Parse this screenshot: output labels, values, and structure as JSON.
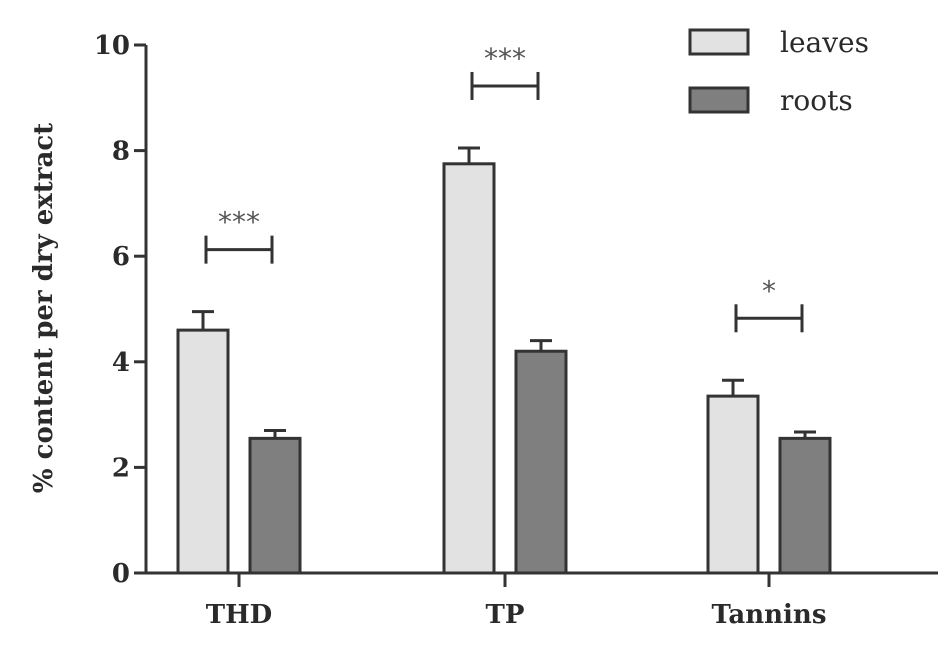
{
  "chart_data": {
    "type": "bar",
    "title": "",
    "xlabel": "",
    "ylabel": "% content per dry extract",
    "ylim": [
      0,
      10
    ],
    "yticks": [
      "0",
      "2",
      "4",
      "6",
      "8",
      "10"
    ],
    "categories": [
      "THD",
      "TP",
      "Tannins"
    ],
    "series": [
      {
        "name": "leaves",
        "values": [
          4.6,
          7.75,
          3.35
        ],
        "errors": [
          0.35,
          0.3,
          0.3
        ],
        "color": "#e2e2e2"
      },
      {
        "name": "roots",
        "values": [
          2.55,
          4.2,
          2.55
        ],
        "errors": [
          0.15,
          0.2,
          0.12
        ],
        "color": "#7f7f7f"
      }
    ],
    "significance": [
      "***",
      "***",
      "*"
    ],
    "legend": "top-right",
    "grid": false
  }
}
